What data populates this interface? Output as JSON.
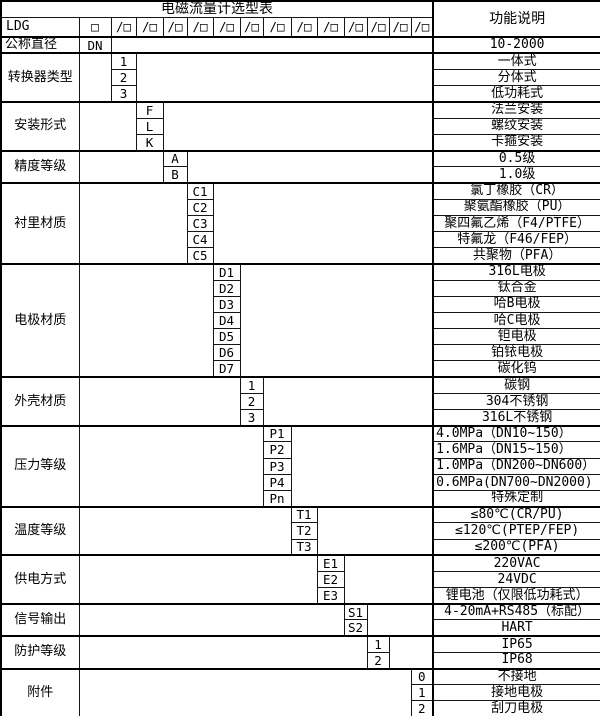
{
  "colors": {
    "border": "#000000",
    "background": "#ffffff",
    "text": "#000000"
  },
  "table": {
    "title": "电磁流量计选型表",
    "desc_header": "功能说明",
    "model_row": {
      "prefix": "LDG",
      "first_box": "□",
      "slot": "/□",
      "slot_count": 13
    },
    "blocks": [
      {
        "category": "公称直径",
        "cat_align": "left",
        "code_col": 0,
        "options": [
          {
            "code": "DN",
            "desc": "10-2000"
          }
        ]
      },
      {
        "category": "转换器类型",
        "code_col": 1,
        "options": [
          {
            "code": "1",
            "desc": "一体式"
          },
          {
            "code": "2",
            "desc": "分体式"
          },
          {
            "code": "3",
            "desc": "低功耗式"
          }
        ]
      },
      {
        "category": "安装形式",
        "code_col": 2,
        "options": [
          {
            "code": "F",
            "desc": "法兰安装"
          },
          {
            "code": "L",
            "desc": "螺纹安装"
          },
          {
            "code": "K",
            "desc": "卡箍安装"
          }
        ]
      },
      {
        "category": "精度等级",
        "code_col": 3,
        "options": [
          {
            "code": "A",
            "desc": "0.5级"
          },
          {
            "code": "B",
            "desc": "1.0级"
          }
        ]
      },
      {
        "category": "衬里材质",
        "code_col": 4,
        "options": [
          {
            "code": "C1",
            "desc": "氯丁橡胶（CR）"
          },
          {
            "code": "C2",
            "desc": "聚氨酯橡胶（PU）"
          },
          {
            "code": "C3",
            "desc": "聚四氟乙烯（F4/PTFE）"
          },
          {
            "code": "C4",
            "desc": "特氟龙（F46/FEP）"
          },
          {
            "code": "C5",
            "desc": "共聚物（PFA）"
          }
        ]
      },
      {
        "category": "电极材质",
        "code_col": 5,
        "options": [
          {
            "code": "D1",
            "desc": "316L电极"
          },
          {
            "code": "D2",
            "desc": "钛合金"
          },
          {
            "code": "D3",
            "desc": "哈B电极"
          },
          {
            "code": "D4",
            "desc": "哈C电极"
          },
          {
            "code": "D5",
            "desc": "钽电极"
          },
          {
            "code": "D6",
            "desc": "铂铱电极"
          },
          {
            "code": "D7",
            "desc": "碳化钨"
          }
        ]
      },
      {
        "category": "外壳材质",
        "code_col": 6,
        "options": [
          {
            "code": "1",
            "desc": "碳钢"
          },
          {
            "code": "2",
            "desc": "304不锈钢"
          },
          {
            "code": "3",
            "desc": "316L不锈钢"
          }
        ]
      },
      {
        "category": "压力等级",
        "code_col": 7,
        "options": [
          {
            "code": "P1",
            "desc": "4.0MPa（DN10~150）",
            "align": "left"
          },
          {
            "code": "P2",
            "desc": "1.6MPa（DN15~150）",
            "align": "left"
          },
          {
            "code": "P3",
            "desc": "1.0MPa（DN200~DN600）",
            "align": "left"
          },
          {
            "code": "P4",
            "desc": "0.6MPa(DN700~DN2000)",
            "align": "left"
          },
          {
            "code": "Pn",
            "desc": "特殊定制"
          }
        ]
      },
      {
        "category": "温度等级",
        "code_col": 8,
        "options": [
          {
            "code": "T1",
            "desc": "≤80℃(CR/PU)"
          },
          {
            "code": "T2",
            "desc": "≤120℃(PTEP/FEP)"
          },
          {
            "code": "T3",
            "desc": "≤200℃(PFA)"
          }
        ]
      },
      {
        "category": "供电方式",
        "code_col": 9,
        "options": [
          {
            "code": "E1",
            "desc": "220VAC"
          },
          {
            "code": "E2",
            "desc": "24VDC"
          },
          {
            "code": "E3",
            "desc": "锂电池（仅限低功耗式）"
          }
        ]
      },
      {
        "category": "信号输出",
        "code_col": 10,
        "options": [
          {
            "code": "S1",
            "desc": "4-20mA+RS485（标配）"
          },
          {
            "code": "S2",
            "desc": "HART"
          }
        ]
      },
      {
        "category": "防护等级",
        "code_col": 11,
        "options": [
          {
            "code": "1",
            "desc": "IP65"
          },
          {
            "code": "2",
            "desc": "IP68"
          }
        ]
      },
      {
        "category": "附件",
        "code_col": 13,
        "options": [
          {
            "code": "0",
            "desc": "不接地"
          },
          {
            "code": "1",
            "desc": "接地电极"
          },
          {
            "code": "2",
            "desc": "刮刀电极"
          }
        ]
      }
    ]
  }
}
